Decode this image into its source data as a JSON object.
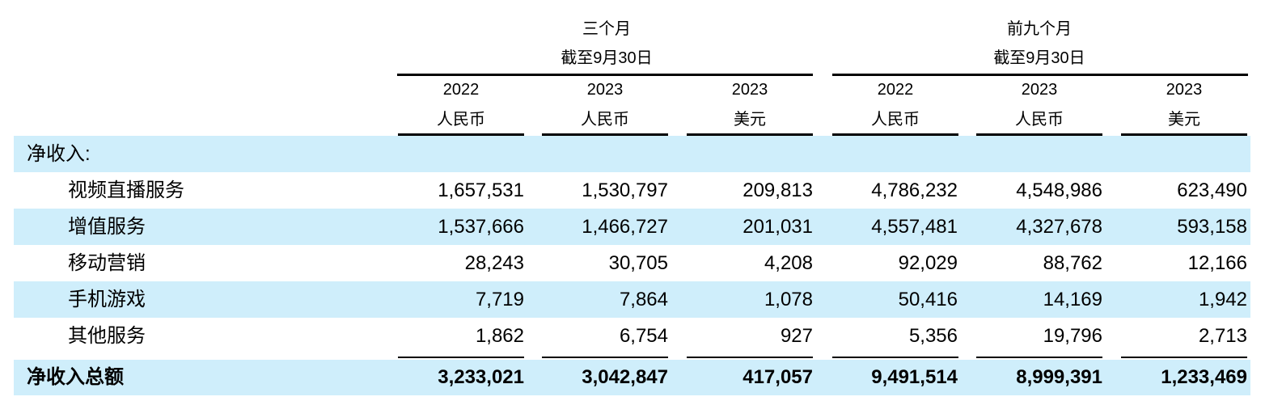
{
  "header": {
    "group1": {
      "line1": "三个月",
      "line2": "截至9月30日"
    },
    "group2": {
      "line1": "前九个月",
      "line2": "截至9月30日"
    },
    "columns": [
      {
        "year": "2022",
        "currency": "人民币"
      },
      {
        "year": "2023",
        "currency": "人民币"
      },
      {
        "year": "2023",
        "currency": "美元"
      },
      {
        "year": "2022",
        "currency": "人民币"
      },
      {
        "year": "2023",
        "currency": "人民币"
      },
      {
        "year": "2023",
        "currency": "美元"
      }
    ]
  },
  "section_label": "净收入:",
  "rows": [
    {
      "label": "视频直播服务",
      "values": [
        "1,657,531",
        "1,530,797",
        "209,813",
        "4,786,232",
        "4,548,986",
        "623,490"
      ]
    },
    {
      "label": "增值服务",
      "values": [
        "1,537,666",
        "1,466,727",
        "201,031",
        "4,557,481",
        "4,327,678",
        "593,158"
      ]
    },
    {
      "label": "移动营销",
      "values": [
        "28,243",
        "30,705",
        "4,208",
        "92,029",
        "88,762",
        "12,166"
      ]
    },
    {
      "label": "手机游戏",
      "values": [
        "7,719",
        "7,864",
        "1,078",
        "50,416",
        "14,169",
        "1,942"
      ]
    },
    {
      "label": "其他服务",
      "values": [
        "1,862",
        "6,754",
        "927",
        "5,356",
        "19,796",
        "2,713"
      ]
    }
  ],
  "total": {
    "label": "净收入总额",
    "values": [
      "3,233,021",
      "3,042,847",
      "417,057",
      "9,491,514",
      "8,999,391",
      "1,233,469"
    ]
  }
}
